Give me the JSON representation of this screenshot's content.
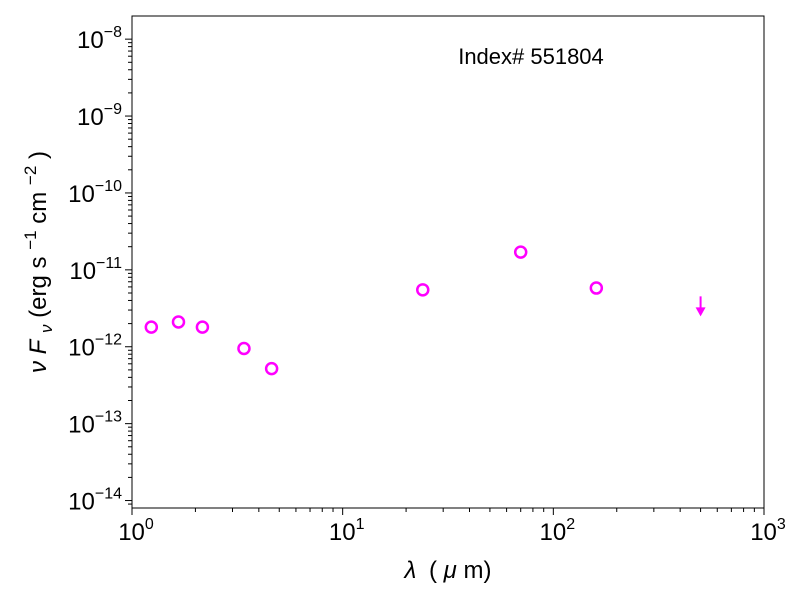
{
  "chart_data": {
    "type": "scatter",
    "title": "",
    "annotation": "Index# 551804",
    "xlabel": {
      "symbol": "λ",
      "unit_prefix": "(",
      "unit_symbol": "μ",
      "unit_rest": "m)"
    },
    "ylabel": {
      "nu": "ν",
      "F": "F",
      "sub": "ν",
      "unit_a": " (erg s",
      "exp_a": "−1",
      "unit_b": " cm",
      "exp_b": "−2",
      "unit_c": ")"
    },
    "xscale": "log",
    "yscale": "log",
    "xlim": [
      1,
      1000
    ],
    "ylim": [
      8e-15,
      2e-08
    ],
    "x_ticks": [
      {
        "value": 1,
        "base": "10",
        "exp": "0"
      },
      {
        "value": 10,
        "base": "10",
        "exp": "1"
      },
      {
        "value": 100,
        "base": "10",
        "exp": "2"
      },
      {
        "value": 1000,
        "base": "10",
        "exp": "3"
      }
    ],
    "y_ticks": [
      {
        "value": 1e-14,
        "base": "10",
        "exp": "−14"
      },
      {
        "value": 1e-13,
        "base": "10",
        "exp": "−13"
      },
      {
        "value": 1e-12,
        "base": "10",
        "exp": "−12"
      },
      {
        "value": 1e-11,
        "base": "10",
        "exp": "−11"
      },
      {
        "value": 1e-10,
        "base": "10",
        "exp": "−10"
      },
      {
        "value": 1e-09,
        "base": "10",
        "exp": "−9"
      },
      {
        "value": 1e-08,
        "base": "10",
        "exp": "−8"
      }
    ],
    "series": [
      {
        "marker": "open-circle",
        "color": "#ff00ff",
        "points": [
          {
            "x": 1.235,
            "y": 1.8e-12
          },
          {
            "x": 1.662,
            "y": 2.1e-12
          },
          {
            "x": 2.159,
            "y": 1.8e-12
          },
          {
            "x": 3.4,
            "y": 9.5e-13
          },
          {
            "x": 4.6,
            "y": 5.2e-13
          },
          {
            "x": 24,
            "y": 5.5e-12
          },
          {
            "x": 70,
            "y": 1.7e-11
          },
          {
            "x": 160,
            "y": 5.8e-12
          }
        ]
      },
      {
        "marker": "upper-limit-arrow",
        "color": "#ff00ff",
        "points": [
          {
            "x": 500,
            "y": 2.8e-12
          }
        ]
      }
    ],
    "grid": false,
    "legend": "none"
  }
}
